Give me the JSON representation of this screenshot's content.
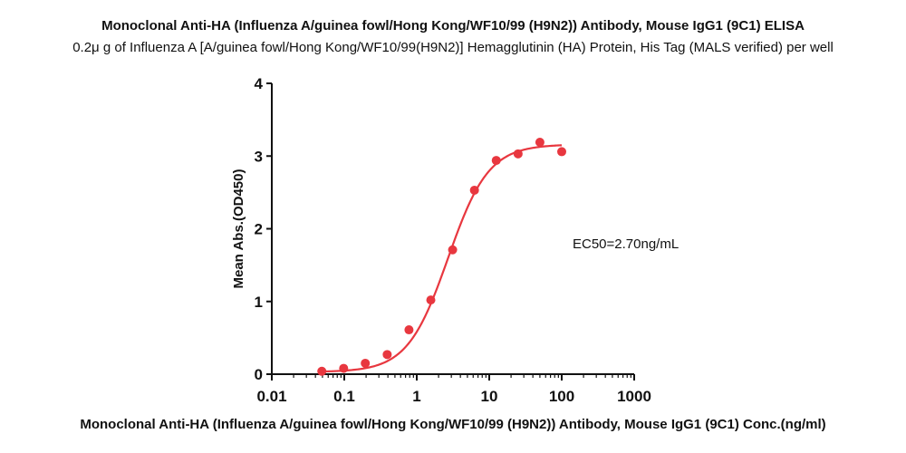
{
  "chart_data": {
    "type": "scatter",
    "title": "Monoclonal Anti-HA (Influenza A/guinea fowl/Hong Kong/WF10/99 (H9N2)) Antibody, Mouse IgG1 (9C1) ELISA",
    "subtitle": "0.2μ g of Influenza A [A/guinea fowl/Hong Kong/WF10/99(H9N2)] Hemagglutinin (HA) Protein, His Tag (MALS verified) per well",
    "xlabel": "Monoclonal Anti-HA (Influenza A/guinea fowl/Hong Kong/WF10/99 (H9N2)) Antibody, Mouse IgG1 (9C1) Conc.(ng/ml)",
    "ylabel": "Mean Abs.(OD450)",
    "x_scale": "log",
    "xlim": [
      0.01,
      1000
    ],
    "ylim": [
      0,
      4
    ],
    "x_ticks": [
      {
        "value": 0.01,
        "label": "0.01"
      },
      {
        "value": 0.1,
        "label": "0.1"
      },
      {
        "value": 1,
        "label": "1"
      },
      {
        "value": 10,
        "label": "10"
      },
      {
        "value": 100,
        "label": "100"
      },
      {
        "value": 1000,
        "label": "1000"
      }
    ],
    "y_ticks": [
      {
        "value": 0,
        "label": "0"
      },
      {
        "value": 1,
        "label": "1"
      },
      {
        "value": 2,
        "label": "2"
      },
      {
        "value": 3,
        "label": "3"
      },
      {
        "value": 4,
        "label": "4"
      }
    ],
    "grid": false,
    "color": "#e8373f",
    "points": [
      {
        "x": 0.049,
        "y": 0.04
      },
      {
        "x": 0.098,
        "y": 0.08
      },
      {
        "x": 0.195,
        "y": 0.15
      },
      {
        "x": 0.391,
        "y": 0.27
      },
      {
        "x": 0.781,
        "y": 0.61
      },
      {
        "x": 1.563,
        "y": 1.02
      },
      {
        "x": 3.125,
        "y": 1.71
      },
      {
        "x": 6.25,
        "y": 2.53
      },
      {
        "x": 12.5,
        "y": 2.94
      },
      {
        "x": 25,
        "y": 3.03
      },
      {
        "x": 50,
        "y": 3.19
      },
      {
        "x": 100,
        "y": 3.06
      }
    ],
    "fit": {
      "model": "4PL",
      "bottom": 0.03,
      "top": 3.16,
      "ec50": 2.7,
      "hill": 1.55
    },
    "annotation": "EC50=2.70ng/mL"
  }
}
